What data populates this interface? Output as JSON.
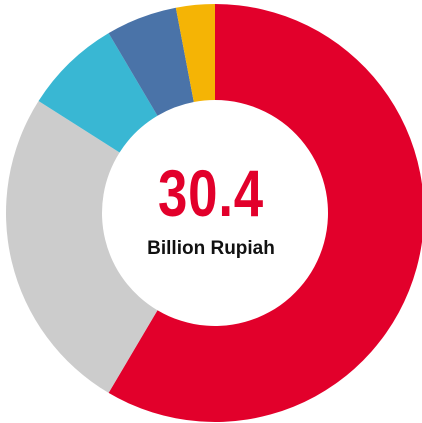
{
  "chart_data": {
    "type": "donut",
    "center_value": "30.4",
    "center_unit": "Billion Rupiah",
    "center_value_color": "#E2002B",
    "start_angle_deg": 0,
    "direction": "clockwise",
    "slices": [
      {
        "value": 58.5,
        "color": "#E2002B"
      },
      {
        "value": 25.5,
        "color": "#CCCCCC"
      },
      {
        "value": 7.5,
        "color": "#39B7D3"
      },
      {
        "value": 5.5,
        "color": "#4A73A8"
      },
      {
        "value": 3.0,
        "color": "#F5B405"
      }
    ]
  }
}
